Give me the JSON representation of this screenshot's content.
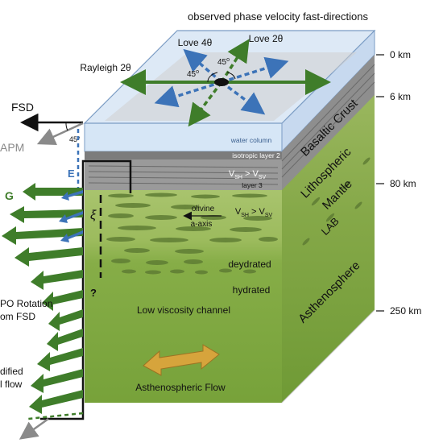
{
  "title": "observed phase velocity fast-directions",
  "depths": [
    "0 km",
    "6 km",
    "80 km",
    "250 km"
  ],
  "anisotropy_labels": {
    "love_4theta": "Love 4θ",
    "love_2theta": "Love 2θ",
    "rayleigh_2theta": "Rayleigh 2θ",
    "angle_top_1": "45",
    "angle_top_2": "45",
    "degree": "o",
    "angle_side": "45°"
  },
  "left_labels": {
    "fsd": "FSD",
    "apm": "APM",
    "e": "E",
    "g": "G",
    "xi": "ξ",
    "question": "?",
    "lpo_line1": "PO Rotation",
    "lpo_line2": "om FSD",
    "mod_line1": "dified",
    "mod_line2": "l flow"
  },
  "layers": {
    "water_column": "water column",
    "isotropic_layer": "isotropic layer 2",
    "layer3": "layer 3",
    "vsh": "V",
    "vsh_sub": "SH",
    "gt": " > ",
    "vsv": "V",
    "vsv_sub": "SV",
    "olivine": "olivine",
    "a_axis": "a-axis",
    "deydrated": "deydrated",
    "hydrated": "hydrated",
    "low_viscosity": "Low viscosity channel",
    "asthenospheric_flow": "Asthenospheric Flow"
  },
  "side_labels": {
    "basaltic_crust": "Basaltic Crust",
    "lithospheric": "Lithospheric",
    "mantle": "Mantle",
    "lab": "LAB",
    "asthenosphere": "Asthenosphere"
  },
  "colors": {
    "water": "#d6e6f6",
    "crust": "#9a9a9a",
    "lithosphere": "#a9c36a",
    "asthenosphere": "#7aa73e",
    "green_arrow": "#3f7d2a",
    "blue_arrow": "#3c73b8",
    "flow_arrow": "#d6a43c"
  }
}
